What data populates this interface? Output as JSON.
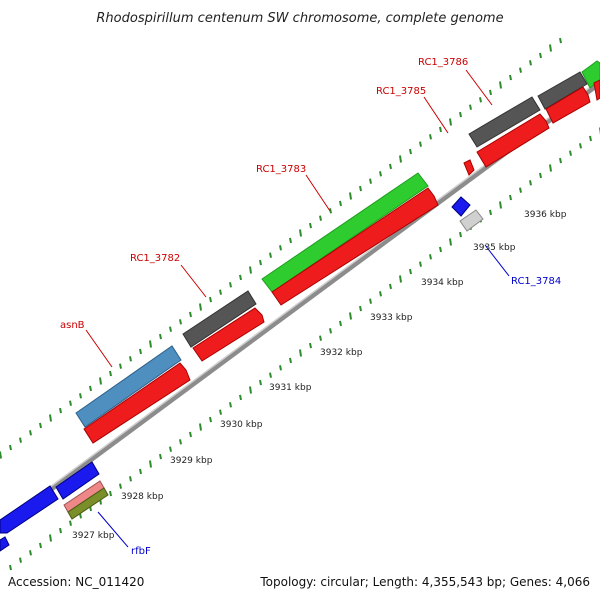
{
  "title": "Rhodospirillum centenum SW chromosome, complete genome",
  "accession": "Accession: NC_011420",
  "topology": "Topology: circular; Length: 4,355,543 bp; Genes: 4,066",
  "colors": {
    "forward_label": "#cc0000",
    "reverse_label": "#0000cc",
    "tick_green": "#2e8b2e",
    "backbone": "#9a9a9a"
  },
  "kbp_ticks": [
    "3927 kbp",
    "3928 kbp",
    "3929 kbp",
    "3930 kbp",
    "3931 kbp",
    "3932 kbp",
    "3933 kbp",
    "3934 kbp",
    "3935 kbp",
    "3936 kbp"
  ],
  "gene_labels": [
    {
      "name": "asnB",
      "strand": "forward"
    },
    {
      "name": "RC1_3782",
      "strand": "forward"
    },
    {
      "name": "RC1_3783",
      "strand": "forward"
    },
    {
      "name": "RC1_3785",
      "strand": "forward"
    },
    {
      "name": "RC1_3786",
      "strand": "forward"
    },
    {
      "name": "RC1_3784",
      "strand": "reverse"
    },
    {
      "name": "rfbF",
      "strand": "reverse"
    }
  ]
}
